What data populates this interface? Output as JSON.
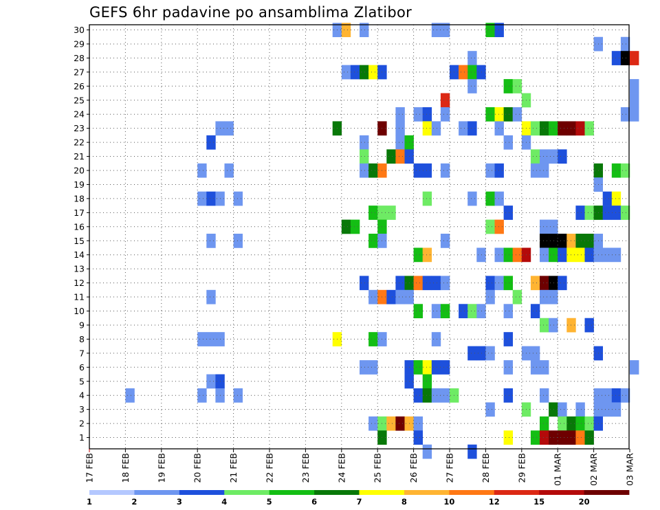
{
  "title": "GEFS 6hr padavine po ansamblima Zlatibor",
  "chart_data": {
    "type": "heatmap",
    "title": "GEFS 6hr padavine po ansamblima Zlatibor",
    "y_ticks": [
      "1",
      "2",
      "3",
      "4",
      "5",
      "6",
      "7",
      "8",
      "9",
      "10",
      "11",
      "12",
      "13",
      "14",
      "15",
      "16",
      "17",
      "18",
      "19",
      "20",
      "21",
      "22",
      "23",
      "24",
      "25",
      "26",
      "27",
      "28",
      "29",
      "30"
    ],
    "x_ticks": [
      "17 FEB",
      "18 FEB",
      "19 FEB",
      "20 FEB",
      "21 FEB",
      "22 FEB",
      "23 FEB",
      "24 FEB",
      "25 FEB",
      "26 FEB",
      "27 FEB",
      "28 FEB",
      "29 FEB",
      "01 MAR",
      "02 MAR",
      "03 MAR"
    ],
    "time_steps_per_day": 4,
    "grid": true,
    "colorbar": {
      "labels": [
        "1",
        "2",
        "3",
        "4",
        "5",
        "6",
        "7",
        "8",
        "10",
        "12",
        "15",
        "20"
      ],
      "colors": [
        "#b4c8ff",
        "#6e96f0",
        "#1e50dc",
        "#6eeb64",
        "#14be14",
        "#087808",
        "#ffff00",
        "#ffb432",
        "#ff7814",
        "#dc2814",
        "#b40a0a",
        "#6e0000"
      ]
    },
    "cells": [
      [
        27,
        30,
        1
      ],
      [
        28,
        30,
        7
      ],
      [
        30,
        30,
        1
      ],
      [
        38,
        30,
        1
      ],
      [
        39,
        30,
        1
      ],
      [
        44,
        30,
        4
      ],
      [
        45,
        30,
        2
      ],
      [
        56,
        29,
        1
      ],
      [
        59,
        29,
        1
      ],
      [
        42,
        28,
        1
      ],
      [
        58,
        28,
        2
      ],
      [
        59,
        28,
        12
      ],
      [
        60,
        28,
        9
      ],
      [
        28,
        27,
        1
      ],
      [
        29,
        27,
        2
      ],
      [
        30,
        27,
        5
      ],
      [
        31,
        27,
        6
      ],
      [
        32,
        27,
        2
      ],
      [
        40,
        27,
        2
      ],
      [
        41,
        27,
        8
      ],
      [
        42,
        27,
        4
      ],
      [
        43,
        27,
        2
      ],
      [
        42,
        26,
        1
      ],
      [
        46,
        26,
        4
      ],
      [
        47,
        26,
        3
      ],
      [
        60,
        26,
        1
      ],
      [
        39,
        25,
        9
      ],
      [
        48,
        25,
        3
      ],
      [
        60,
        25,
        1
      ],
      [
        34,
        24,
        1
      ],
      [
        36,
        24,
        1
      ],
      [
        37,
        24,
        2
      ],
      [
        39,
        24,
        1
      ],
      [
        44,
        24,
        4
      ],
      [
        45,
        24,
        6
      ],
      [
        46,
        24,
        5
      ],
      [
        47,
        24,
        1
      ],
      [
        59,
        24,
        1
      ],
      [
        60,
        24,
        1
      ],
      [
        14,
        23,
        1
      ],
      [
        15,
        23,
        1
      ],
      [
        27,
        23,
        5
      ],
      [
        32,
        23,
        11
      ],
      [
        34,
        23,
        1
      ],
      [
        37,
        23,
        6
      ],
      [
        38,
        23,
        1
      ],
      [
        41,
        23,
        1
      ],
      [
        42,
        23,
        2
      ],
      [
        45,
        23,
        1
      ],
      [
        48,
        23,
        6
      ],
      [
        49,
        23,
        3
      ],
      [
        50,
        23,
        5
      ],
      [
        51,
        23,
        4
      ],
      [
        52,
        23,
        11
      ],
      [
        53,
        23,
        11
      ],
      [
        54,
        23,
        10
      ],
      [
        55,
        23,
        3
      ],
      [
        13,
        22,
        2
      ],
      [
        30,
        22,
        1
      ],
      [
        34,
        22,
        1
      ],
      [
        35,
        22,
        4
      ],
      [
        46,
        22,
        1
      ],
      [
        48,
        22,
        1
      ],
      [
        30,
        21,
        3
      ],
      [
        33,
        21,
        5
      ],
      [
        34,
        21,
        8
      ],
      [
        35,
        21,
        2
      ],
      [
        49,
        21,
        3
      ],
      [
        50,
        21,
        1
      ],
      [
        51,
        21,
        1
      ],
      [
        52,
        21,
        2
      ],
      [
        12,
        20,
        1
      ],
      [
        15,
        20,
        1
      ],
      [
        30,
        20,
        1
      ],
      [
        31,
        20,
        5
      ],
      [
        32,
        20,
        8
      ],
      [
        36,
        20,
        2
      ],
      [
        37,
        20,
        2
      ],
      [
        39,
        20,
        1
      ],
      [
        44,
        20,
        1
      ],
      [
        45,
        20,
        2
      ],
      [
        49,
        20,
        1
      ],
      [
        50,
        20,
        1
      ],
      [
        56,
        20,
        5
      ],
      [
        58,
        20,
        4
      ],
      [
        59,
        20,
        3
      ],
      [
        56,
        19,
        1
      ],
      [
        12,
        18,
        1
      ],
      [
        13,
        18,
        2
      ],
      [
        14,
        18,
        1
      ],
      [
        16,
        18,
        1
      ],
      [
        37,
        18,
        3
      ],
      [
        42,
        18,
        1
      ],
      [
        44,
        18,
        4
      ],
      [
        45,
        18,
        1
      ],
      [
        57,
        18,
        2
      ],
      [
        58,
        18,
        6
      ],
      [
        31,
        17,
        4
      ],
      [
        32,
        17,
        3
      ],
      [
        33,
        17,
        3
      ],
      [
        46,
        17,
        2
      ],
      [
        54,
        17,
        2
      ],
      [
        55,
        17,
        3
      ],
      [
        56,
        17,
        5
      ],
      [
        57,
        17,
        2
      ],
      [
        58,
        17,
        2
      ],
      [
        59,
        17,
        3
      ],
      [
        28,
        16,
        5
      ],
      [
        29,
        16,
        4
      ],
      [
        32,
        16,
        4
      ],
      [
        44,
        16,
        3
      ],
      [
        45,
        16,
        8
      ],
      [
        50,
        16,
        1
      ],
      [
        51,
        16,
        1
      ],
      [
        13,
        15,
        1
      ],
      [
        16,
        15,
        1
      ],
      [
        31,
        15,
        4
      ],
      [
        32,
        15,
        1
      ],
      [
        39,
        15,
        1
      ],
      [
        50,
        15,
        12
      ],
      [
        51,
        15,
        12
      ],
      [
        52,
        15,
        12
      ],
      [
        53,
        15,
        7
      ],
      [
        54,
        15,
        5
      ],
      [
        55,
        15,
        5
      ],
      [
        56,
        15,
        1
      ],
      [
        36,
        14,
        4
      ],
      [
        37,
        14,
        7
      ],
      [
        43,
        14,
        1
      ],
      [
        45,
        14,
        1
      ],
      [
        46,
        14,
        4
      ],
      [
        47,
        14,
        8
      ],
      [
        48,
        14,
        10
      ],
      [
        50,
        14,
        1
      ],
      [
        51,
        14,
        4
      ],
      [
        52,
        14,
        2
      ],
      [
        53,
        14,
        6
      ],
      [
        54,
        14,
        6
      ],
      [
        55,
        14,
        2
      ],
      [
        56,
        14,
        1
      ],
      [
        57,
        14,
        1
      ],
      [
        58,
        14,
        1
      ],
      [
        30,
        12,
        2
      ],
      [
        34,
        12,
        2
      ],
      [
        35,
        12,
        5
      ],
      [
        36,
        12,
        8
      ],
      [
        37,
        12,
        2
      ],
      [
        38,
        12,
        2
      ],
      [
        39,
        12,
        1
      ],
      [
        44,
        12,
        2
      ],
      [
        45,
        12,
        1
      ],
      [
        46,
        12,
        4
      ],
      [
        49,
        12,
        7
      ],
      [
        50,
        12,
        11
      ],
      [
        51,
        12,
        12
      ],
      [
        52,
        12,
        2
      ],
      [
        13,
        11,
        1
      ],
      [
        31,
        11,
        1
      ],
      [
        32,
        11,
        8
      ],
      [
        33,
        11,
        2
      ],
      [
        34,
        11,
        1
      ],
      [
        35,
        11,
        1
      ],
      [
        44,
        11,
        1
      ],
      [
        47,
        11,
        3
      ],
      [
        50,
        11,
        1
      ],
      [
        51,
        11,
        1
      ],
      [
        36,
        10,
        4
      ],
      [
        38,
        10,
        1
      ],
      [
        39,
        10,
        4
      ],
      [
        41,
        10,
        2
      ],
      [
        42,
        10,
        3
      ],
      [
        43,
        10,
        1
      ],
      [
        46,
        10,
        1
      ],
      [
        49,
        10,
        2
      ],
      [
        50,
        9,
        3
      ],
      [
        51,
        9,
        1
      ],
      [
        53,
        9,
        7
      ],
      [
        55,
        9,
        2
      ],
      [
        12,
        8,
        1
      ],
      [
        13,
        8,
        1
      ],
      [
        14,
        8,
        1
      ],
      [
        27,
        8,
        6
      ],
      [
        31,
        8,
        4
      ],
      [
        32,
        8,
        1
      ],
      [
        38,
        8,
        1
      ],
      [
        46,
        8,
        2
      ],
      [
        42,
        7,
        2
      ],
      [
        43,
        7,
        2
      ],
      [
        44,
        7,
        1
      ],
      [
        48,
        7,
        1
      ],
      [
        49,
        7,
        1
      ],
      [
        56,
        7,
        2
      ],
      [
        30,
        6,
        1
      ],
      [
        31,
        6,
        1
      ],
      [
        35,
        6,
        2
      ],
      [
        36,
        6,
        4
      ],
      [
        37,
        6,
        6
      ],
      [
        38,
        6,
        2
      ],
      [
        39,
        6,
        2
      ],
      [
        46,
        6,
        1
      ],
      [
        49,
        6,
        1
      ],
      [
        50,
        6,
        1
      ],
      [
        60,
        6,
        1
      ],
      [
        13,
        5,
        1
      ],
      [
        14,
        5,
        2
      ],
      [
        35,
        5,
        2
      ],
      [
        37,
        5,
        4
      ],
      [
        4,
        4,
        1
      ],
      [
        12,
        4,
        1
      ],
      [
        14,
        4,
        1
      ],
      [
        16,
        4,
        1
      ],
      [
        36,
        4,
        2
      ],
      [
        37,
        4,
        5
      ],
      [
        38,
        4,
        1
      ],
      [
        39,
        4,
        1
      ],
      [
        40,
        4,
        3
      ],
      [
        46,
        4,
        2
      ],
      [
        50,
        4,
        1
      ],
      [
        56,
        4,
        1
      ],
      [
        57,
        4,
        1
      ],
      [
        58,
        4,
        2
      ],
      [
        59,
        4,
        1
      ],
      [
        44,
        3,
        1
      ],
      [
        48,
        3,
        3
      ],
      [
        51,
        3,
        5
      ],
      [
        52,
        3,
        1
      ],
      [
        54,
        3,
        1
      ],
      [
        56,
        3,
        1
      ],
      [
        57,
        3,
        1
      ],
      [
        58,
        3,
        1
      ],
      [
        31,
        2,
        1
      ],
      [
        32,
        2,
        3
      ],
      [
        33,
        2,
        7
      ],
      [
        34,
        2,
        11
      ],
      [
        35,
        2,
        7
      ],
      [
        36,
        2,
        1
      ],
      [
        50,
        2,
        4
      ],
      [
        52,
        2,
        3
      ],
      [
        53,
        2,
        5
      ],
      [
        54,
        2,
        4
      ],
      [
        55,
        2,
        3
      ],
      [
        56,
        2,
        2
      ],
      [
        32,
        1,
        5
      ],
      [
        36,
        1,
        2
      ],
      [
        46,
        1,
        6
      ],
      [
        49,
        1,
        4
      ],
      [
        50,
        1,
        10
      ],
      [
        51,
        1,
        11
      ],
      [
        52,
        1,
        11
      ],
      [
        53,
        1,
        11
      ],
      [
        54,
        1,
        8
      ],
      [
        55,
        1,
        5
      ],
      [
        37,
        0,
        1
      ],
      [
        42,
        0,
        2
      ]
    ]
  }
}
